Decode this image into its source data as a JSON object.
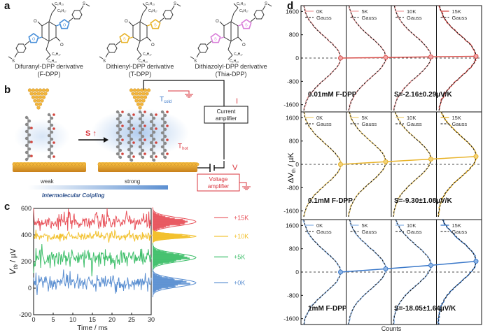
{
  "panels": {
    "a": {
      "letter": "a",
      "molecules": [
        {
          "line1": "Difuranyl-DPP derivative",
          "line2": "(F-DPP)",
          "heteroatom": "O",
          "color": "#4a90d9"
        },
        {
          "line1": "Dithienyl-DPP derivative",
          "line2": "(T-DPP)",
          "heteroatom": "S",
          "color": "#e8b32a"
        },
        {
          "line1": "Dithiazolyl-DPP derivative",
          "line2": "(Thia-DPP)",
          "heteroatom": "S N",
          "color": "#d97fd9"
        }
      ],
      "substituent_labels": {
        "upper": "C₆H₁₃",
        "side": "C₈H₁₇",
        "sulfur": "S",
        "oxygen": "O",
        "nitrogen": "N"
      }
    },
    "b": {
      "letter": "b",
      "t_cold": "T",
      "t_cold_sub": "cold",
      "t_hot": "T",
      "t_hot_sub": "hot",
      "weak": "weak",
      "strong": "strong",
      "coupling": "Intermolecular Coipling",
      "current_amp": [
        "Current",
        "amplifier"
      ],
      "voltage_amp": [
        "Voltage",
        "amplifier"
      ],
      "I": "I",
      "V": "V",
      "S_arrow": "S ↑"
    },
    "c": {
      "letter": "c",
      "ylabel": "V",
      "ylabel_sub": "th",
      "ylabel_unit": " / µV",
      "xlabel": "Time / ms",
      "colors": {
        "+15K": "#e8545c",
        "+10K": "#f2c12e",
        "+5K": "#3fbf6b",
        "+0K": "#5b8fd1"
      },
      "legend": [
        "+15K",
        "+10K",
        "+5K",
        "+0K"
      ]
    },
    "d": {
      "letter": "d",
      "ylabel": "ΔV",
      "ylabel_sub": "th",
      "ylabel_unit": " / µK",
      "xlabel": "Counts",
      "rows": [
        {
          "label": "0.01mM F-DPP",
          "S": "S=-2.16±0.29µV/K",
          "color": "#d9534f",
          "light": "#f2a6a6"
        },
        {
          "label": "0.1mM F-DPP",
          "S": "S=-9.30±1.08µV/K",
          "color": "#e8b32a",
          "light": "#f2d27a"
        },
        {
          "label": "1mM F-DPP",
          "S": "S=-18.05±1.64µV/K",
          "color": "#3a78c9",
          "light": "#8fb6e6"
        }
      ],
      "col_labels": [
        "0K",
        "5K",
        "10K",
        "15K"
      ],
      "gauss": "Gauss"
    }
  },
  "chart_data": [
    {
      "type": "line",
      "title": "",
      "xlabel": "Time / ms",
      "ylabel": "Vth / µV",
      "xlim": [
        0,
        30
      ],
      "ylim": [
        -200,
        600
      ],
      "x_ticks": [
        0,
        5,
        10,
        15,
        20,
        25,
        30
      ],
      "y_ticks": [
        -200,
        0,
        200,
        400,
        600
      ],
      "series": [
        {
          "name": "+15K",
          "mean": 500,
          "amplitude": 60
        },
        {
          "name": "+10K",
          "mean": 390,
          "amplitude": 30
        },
        {
          "name": "+5K",
          "mean": 230,
          "amplitude": 60
        },
        {
          "name": "+0K",
          "mean": 40,
          "amplitude": 60
        }
      ]
    },
    {
      "type": "line",
      "title": "",
      "xlabel": "Counts",
      "ylabel": "ΔVth / µK",
      "ylim": [
        -1800,
        1800
      ],
      "y_ticks": [
        -1600,
        -800,
        0,
        800,
        1600
      ],
      "columns": [
        "0K",
        "5K",
        "10K",
        "15K"
      ],
      "rows": [
        {
          "name": "0.01mM F-DPP",
          "peak_shift": [
            0,
            20,
            40,
            60
          ]
        },
        {
          "name": "0.1mM F-DPP",
          "peak_shift": [
            0,
            90,
            180,
            270
          ]
        },
        {
          "name": "1mM F-DPP",
          "peak_shift": [
            0,
            110,
            230,
            370
          ]
        }
      ]
    }
  ]
}
